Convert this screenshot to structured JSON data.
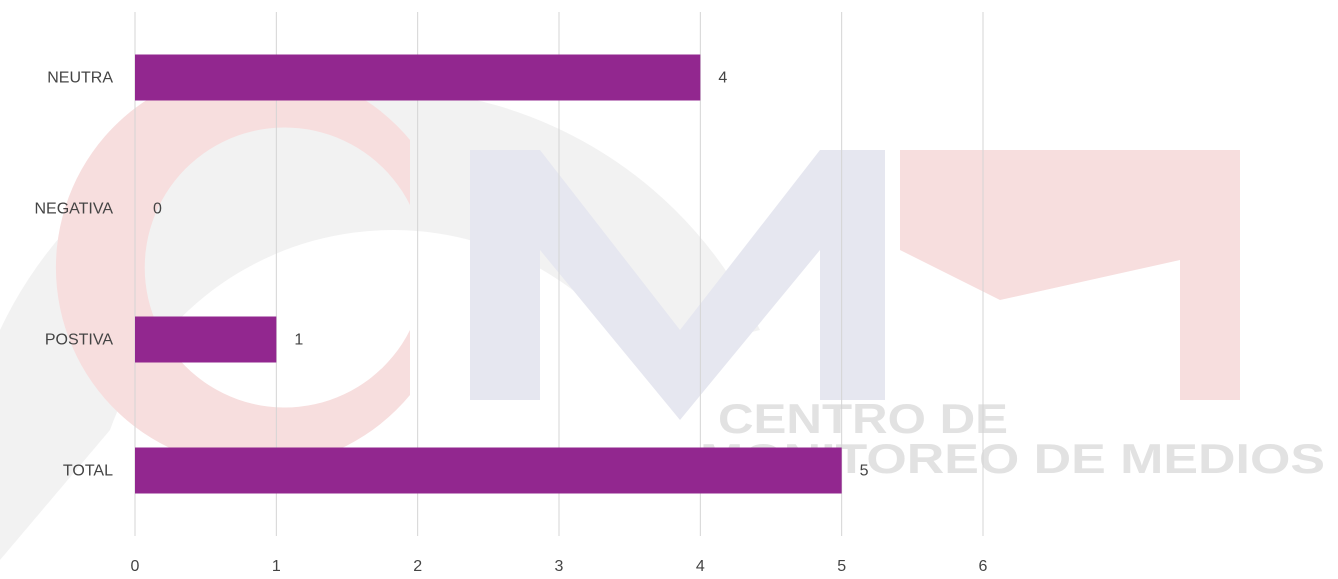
{
  "chart_data": {
    "type": "bar",
    "orientation": "horizontal",
    "categories": [
      "NEUTRA",
      "NEGATIVA",
      "POSTIVA",
      "TOTAL"
    ],
    "values": [
      4,
      0,
      1,
      5
    ],
    "color": "#92278f",
    "xlim": [
      0,
      6
    ],
    "xticks": [
      0,
      1,
      2,
      3,
      4,
      5,
      6
    ],
    "grid": true,
    "watermark": [
      "CENTRO DE",
      "MONITOREO DE MEDIOS"
    ]
  }
}
